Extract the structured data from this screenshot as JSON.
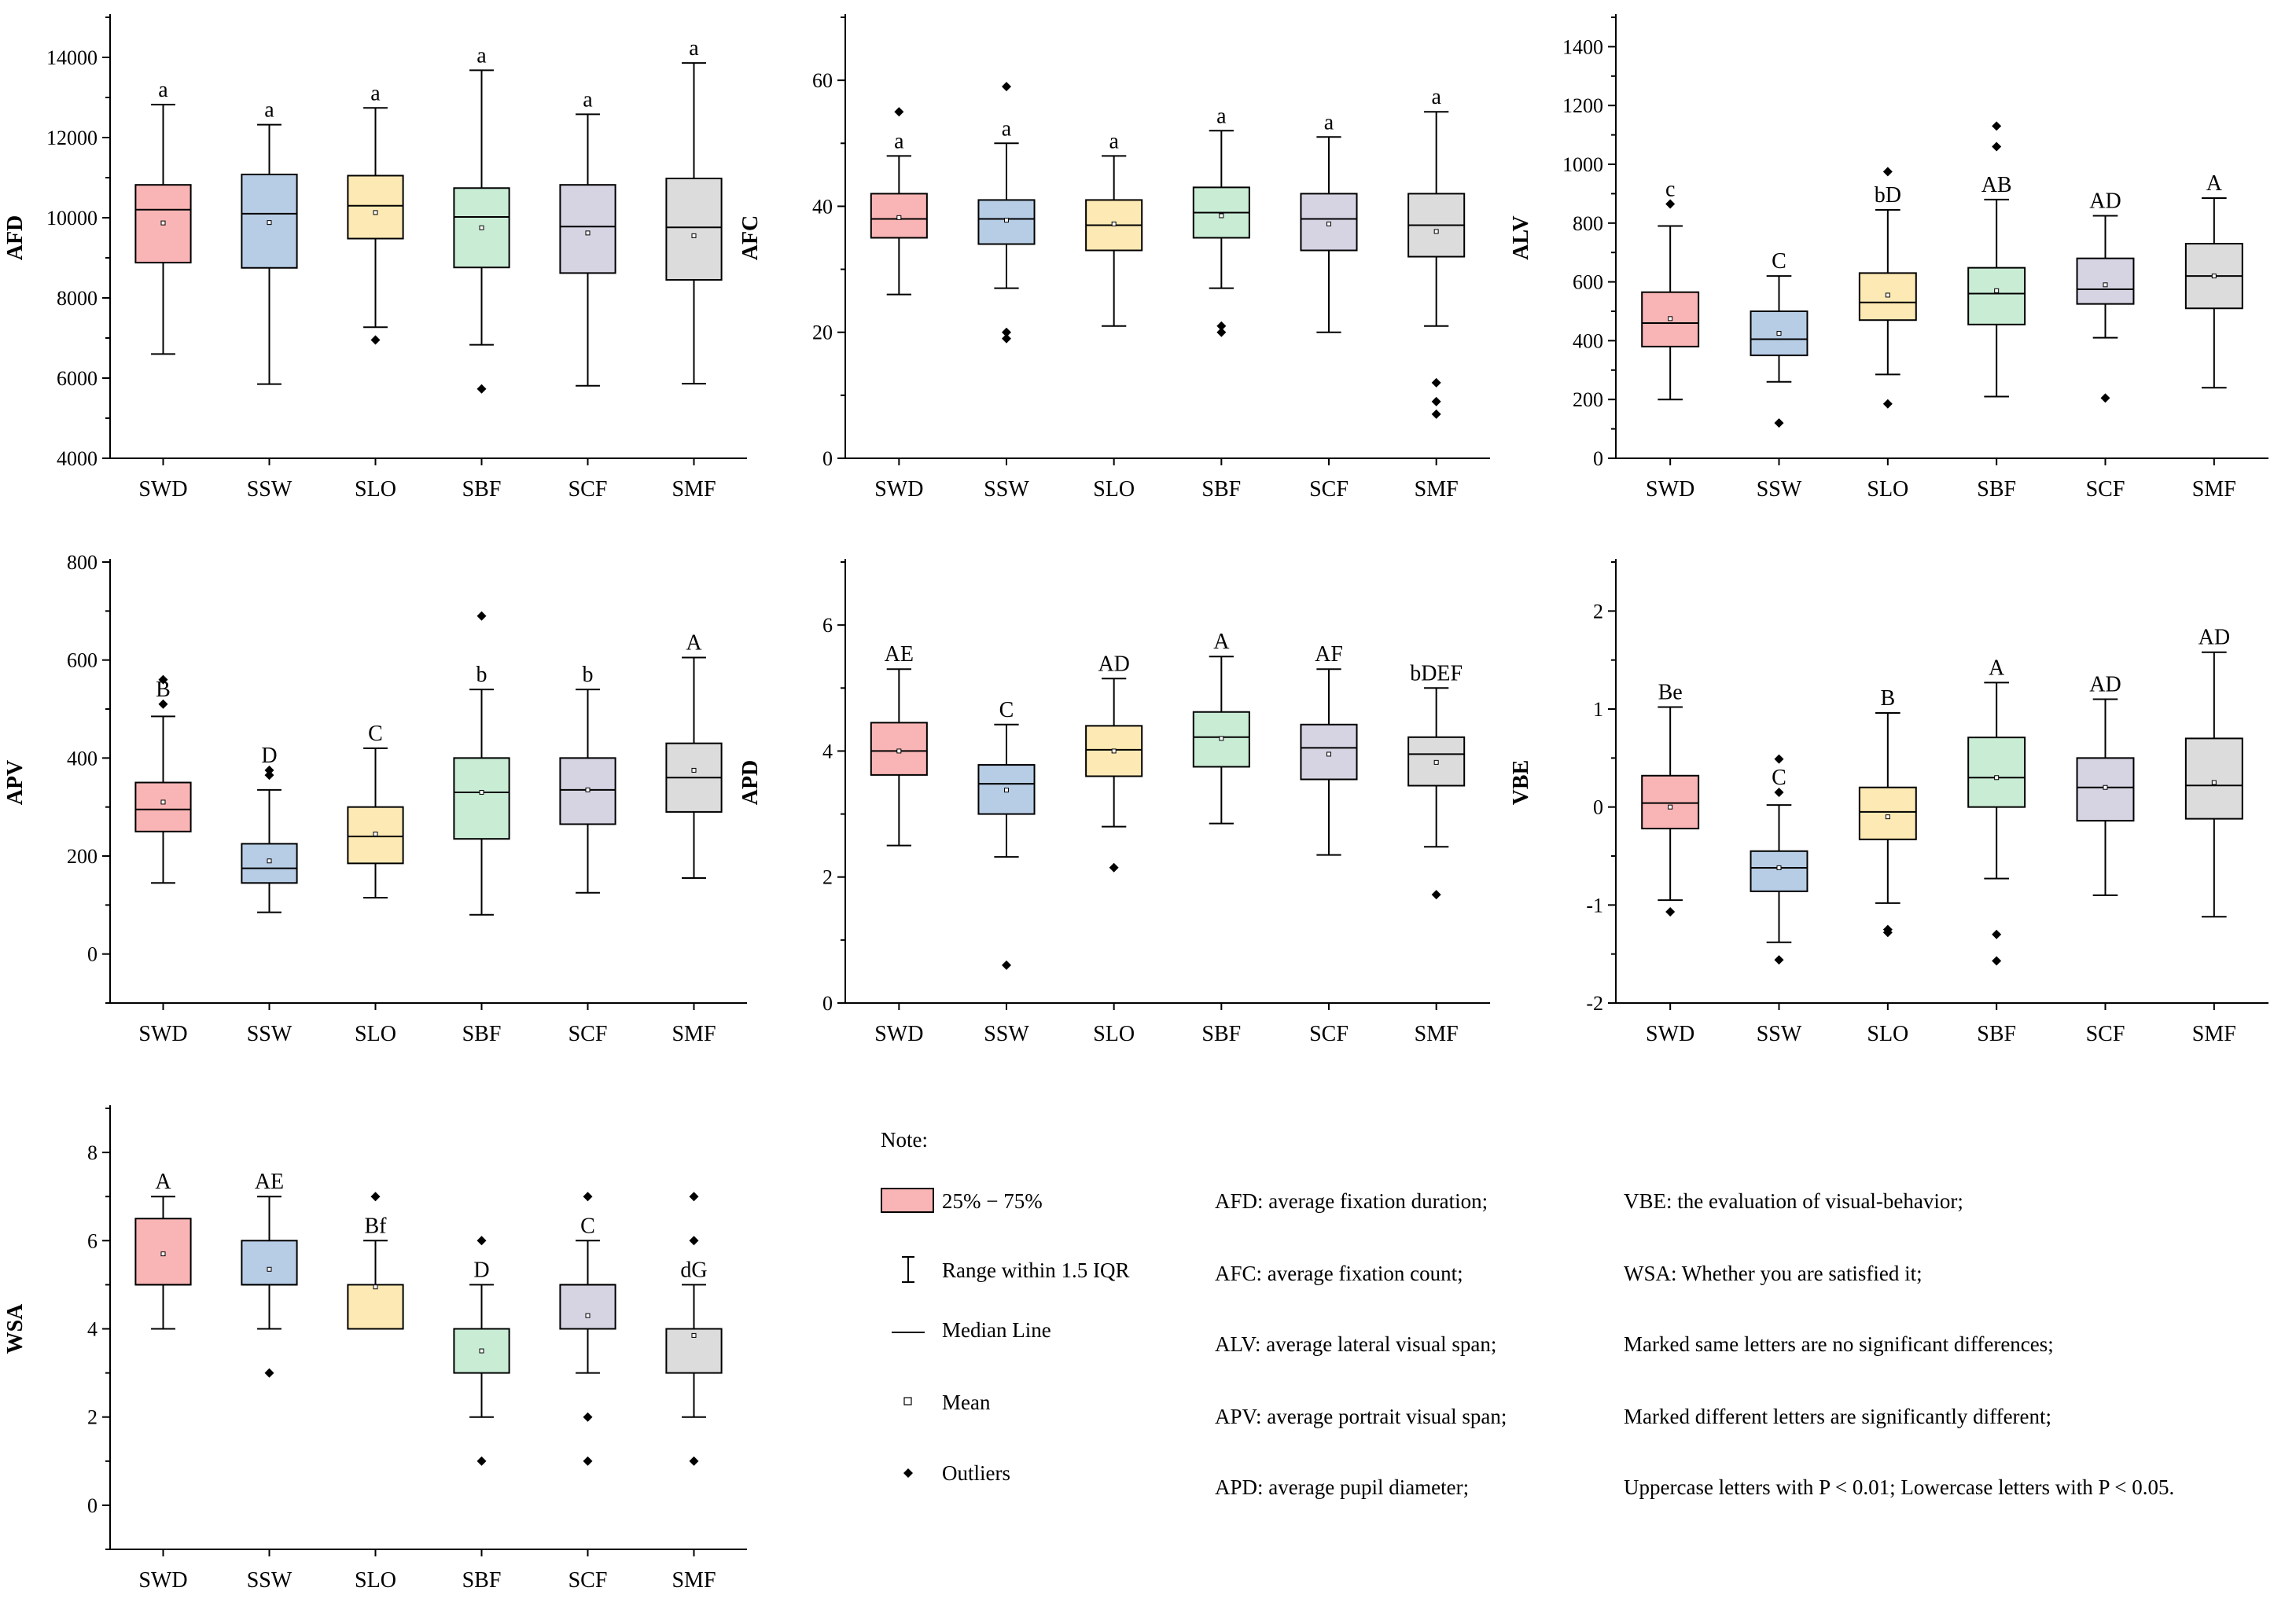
{
  "chart_data": [
    {
      "type": "boxplot",
      "ylabel": "AFD",
      "categories": [
        "SWD",
        "SSW",
        "SLO",
        "SBF",
        "SCF",
        "SMF"
      ],
      "ylim": [
        4000,
        15000
      ],
      "yticks": [
        4000,
        6000,
        8000,
        10000,
        12000,
        14000
      ],
      "series": [
        {
          "name": "SWD",
          "q1": 8880,
          "median": 10200,
          "q3": 10820,
          "mean": 9870,
          "whisker_low": 6600,
          "whisker_high": 12820,
          "outliers": [],
          "letter": "a"
        },
        {
          "name": "SSW",
          "q1": 8750,
          "median": 10100,
          "q3": 11080,
          "mean": 9880,
          "whisker_low": 5850,
          "whisker_high": 12320,
          "outliers": [],
          "letter": "a"
        },
        {
          "name": "SLO",
          "q1": 9480,
          "median": 10300,
          "q3": 11050,
          "mean": 10130,
          "whisker_low": 7270,
          "whisker_high": 12740,
          "outliers": [
            6950
          ],
          "letter": "a"
        },
        {
          "name": "SBF",
          "q1": 8760,
          "median": 10020,
          "q3": 10740,
          "mean": 9750,
          "whisker_low": 6830,
          "whisker_high": 13680,
          "outliers": [
            5730
          ],
          "letter": "a"
        },
        {
          "name": "SCF",
          "q1": 8620,
          "median": 9780,
          "q3": 10820,
          "mean": 9620,
          "whisker_low": 5810,
          "whisker_high": 12580,
          "outliers": [],
          "letter": "a"
        },
        {
          "name": "SMF",
          "q1": 8450,
          "median": 9760,
          "q3": 10980,
          "mean": 9550,
          "whisker_low": 5860,
          "whisker_high": 13860,
          "outliers": [],
          "letter": "a"
        }
      ]
    },
    {
      "type": "boxplot",
      "ylabel": "AFC",
      "categories": [
        "SWD",
        "SSW",
        "SLO",
        "SBF",
        "SCF",
        "SMF"
      ],
      "ylim": [
        0,
        70
      ],
      "yticks": [
        0,
        20,
        40,
        60
      ],
      "series": [
        {
          "name": "SWD",
          "q1": 35,
          "median": 38,
          "q3": 42,
          "mean": 38.2,
          "whisker_low": 26,
          "whisker_high": 48,
          "outliers": [
            55
          ],
          "letter": "a"
        },
        {
          "name": "SSW",
          "q1": 34,
          "median": 38,
          "q3": 41,
          "mean": 37.8,
          "whisker_low": 27,
          "whisker_high": 50,
          "outliers": [
            19,
            20,
            59
          ],
          "letter": "a"
        },
        {
          "name": "SLO",
          "q1": 33,
          "median": 37,
          "q3": 41,
          "mean": 37.2,
          "whisker_low": 21,
          "whisker_high": 48,
          "outliers": [],
          "letter": "a"
        },
        {
          "name": "SBF",
          "q1": 35,
          "median": 39,
          "q3": 43,
          "mean": 38.5,
          "whisker_low": 27,
          "whisker_high": 52,
          "outliers": [
            20,
            21
          ],
          "letter": "a"
        },
        {
          "name": "SCF",
          "q1": 33,
          "median": 38,
          "q3": 42,
          "mean": 37.2,
          "whisker_low": 20,
          "whisker_high": 51,
          "outliers": [],
          "letter": "a"
        },
        {
          "name": "SMF",
          "q1": 32,
          "median": 37,
          "q3": 42,
          "mean": 36,
          "whisker_low": 21,
          "whisker_high": 55,
          "outliers": [
            7,
            9,
            12
          ],
          "letter": "a"
        }
      ]
    },
    {
      "type": "boxplot",
      "ylabel": "ALV",
      "categories": [
        "SWD",
        "SSW",
        "SLO",
        "SBF",
        "SCF",
        "SMF"
      ],
      "ylim": [
        0,
        1500
      ],
      "yticks": [
        0,
        200,
        400,
        600,
        800,
        1000,
        1200,
        1400
      ],
      "series": [
        {
          "name": "SWD",
          "q1": 380,
          "median": 460,
          "q3": 565,
          "mean": 475,
          "whisker_low": 200,
          "whisker_high": 790,
          "outliers": [
            865
          ],
          "letter": "c"
        },
        {
          "name": "SSW",
          "q1": 350,
          "median": 405,
          "q3": 500,
          "mean": 425,
          "whisker_low": 260,
          "whisker_high": 620,
          "outliers": [
            120
          ],
          "letter": "C"
        },
        {
          "name": "SLO",
          "q1": 470,
          "median": 530,
          "q3": 630,
          "mean": 555,
          "whisker_low": 285,
          "whisker_high": 845,
          "outliers": [
            185,
            975
          ],
          "letter": "bD"
        },
        {
          "name": "SBF",
          "q1": 455,
          "median": 560,
          "q3": 648,
          "mean": 570,
          "whisker_low": 210,
          "whisker_high": 880,
          "outliers": [
            1060,
            1130
          ],
          "letter": "AB"
        },
        {
          "name": "SCF",
          "q1": 525,
          "median": 575,
          "q3": 680,
          "mean": 590,
          "whisker_low": 410,
          "whisker_high": 825,
          "outliers": [
            205
          ],
          "letter": "AD"
        },
        {
          "name": "SMF",
          "q1": 510,
          "median": 620,
          "q3": 730,
          "mean": 620,
          "whisker_low": 240,
          "whisker_high": 885,
          "outliers": [],
          "letter": "A"
        }
      ]
    },
    {
      "type": "boxplot",
      "ylabel": "APV",
      "categories": [
        "SWD",
        "SSW",
        "SLO",
        "SBF",
        "SCF",
        "SMF"
      ],
      "ylim": [
        -100,
        800
      ],
      "yticks": [
        0,
        200,
        400,
        600,
        800
      ],
      "series": [
        {
          "name": "SWD",
          "q1": 250,
          "median": 295,
          "q3": 350,
          "mean": 310,
          "whisker_low": 145,
          "whisker_high": 485,
          "outliers": [
            510,
            560
          ],
          "letter": "B"
        },
        {
          "name": "SSW",
          "q1": 145,
          "median": 175,
          "q3": 225,
          "mean": 190,
          "whisker_low": 85,
          "whisker_high": 335,
          "outliers": [
            365,
            375
          ],
          "letter": "D"
        },
        {
          "name": "SLO",
          "q1": 185,
          "median": 240,
          "q3": 300,
          "mean": 245,
          "whisker_low": 115,
          "whisker_high": 420,
          "outliers": [],
          "letter": "C"
        },
        {
          "name": "SBF",
          "q1": 235,
          "median": 330,
          "q3": 400,
          "mean": 330,
          "whisker_low": 80,
          "whisker_high": 540,
          "outliers": [
            690
          ],
          "letter": "b"
        },
        {
          "name": "SCF",
          "q1": 265,
          "median": 335,
          "q3": 400,
          "mean": 335,
          "whisker_low": 125,
          "whisker_high": 540,
          "outliers": [],
          "letter": "b"
        },
        {
          "name": "SMF",
          "q1": 290,
          "median": 360,
          "q3": 430,
          "mean": 375,
          "whisker_low": 155,
          "whisker_high": 605,
          "outliers": [],
          "letter": "A"
        }
      ]
    },
    {
      "type": "boxplot",
      "ylabel": "APD",
      "categories": [
        "SWD",
        "SSW",
        "SLO",
        "SBF",
        "SCF",
        "SMF"
      ],
      "ylim": [
        0,
        7
      ],
      "yticks": [
        0,
        2,
        4,
        6
      ],
      "series": [
        {
          "name": "SWD",
          "q1": 3.62,
          "median": 4.0,
          "q3": 4.45,
          "mean": 4.0,
          "whisker_low": 2.5,
          "whisker_high": 5.3,
          "outliers": [],
          "letter": "AE"
        },
        {
          "name": "SSW",
          "q1": 3.0,
          "median": 3.48,
          "q3": 3.78,
          "mean": 3.38,
          "whisker_low": 2.32,
          "whisker_high": 4.42,
          "outliers": [
            0.6
          ],
          "letter": "C"
        },
        {
          "name": "SLO",
          "q1": 3.6,
          "median": 4.02,
          "q3": 4.4,
          "mean": 4.0,
          "whisker_low": 2.8,
          "whisker_high": 5.15,
          "outliers": [
            2.15
          ],
          "letter": "AD"
        },
        {
          "name": "SBF",
          "q1": 3.75,
          "median": 4.22,
          "q3": 4.62,
          "mean": 4.2,
          "whisker_low": 2.85,
          "whisker_high": 5.5,
          "outliers": [],
          "letter": "A"
        },
        {
          "name": "SCF",
          "q1": 3.55,
          "median": 4.05,
          "q3": 4.42,
          "mean": 3.95,
          "whisker_low": 2.35,
          "whisker_high": 5.3,
          "outliers": [],
          "letter": "AF"
        },
        {
          "name": "SMF",
          "q1": 3.45,
          "median": 3.95,
          "q3": 4.22,
          "mean": 3.82,
          "whisker_low": 2.48,
          "whisker_high": 5.0,
          "outliers": [
            1.72
          ],
          "letter": "bDEF"
        }
      ]
    },
    {
      "type": "boxplot",
      "ylabel": "VBE",
      "categories": [
        "SWD",
        "SSW",
        "SLO",
        "SBF",
        "SCF",
        "SMF"
      ],
      "ylim": [
        -2,
        2.5
      ],
      "yticks": [
        -2,
        -1,
        0,
        1,
        2
      ],
      "series": [
        {
          "name": "SWD",
          "q1": -0.22,
          "median": 0.04,
          "q3": 0.32,
          "mean": 0.0,
          "whisker_low": -0.95,
          "whisker_high": 1.02,
          "outliers": [
            -1.07
          ],
          "letter": "Be"
        },
        {
          "name": "SSW",
          "q1": -0.86,
          "median": -0.62,
          "q3": -0.45,
          "mean": -0.62,
          "whisker_low": -1.38,
          "whisker_high": 0.02,
          "outliers": [
            -1.56,
            0.15,
            0.49
          ],
          "letter": "C"
        },
        {
          "name": "SLO",
          "q1": -0.33,
          "median": -0.05,
          "q3": 0.2,
          "mean": -0.1,
          "whisker_low": -0.98,
          "whisker_high": 0.96,
          "outliers": [
            -1.25,
            -1.28
          ],
          "letter": "B"
        },
        {
          "name": "SBF",
          "q1": 0.0,
          "median": 0.3,
          "q3": 0.71,
          "mean": 0.3,
          "whisker_low": -0.73,
          "whisker_high": 1.27,
          "outliers": [
            -1.3,
            -1.57
          ],
          "letter": "A"
        },
        {
          "name": "SCF",
          "q1": -0.14,
          "median": 0.2,
          "q3": 0.5,
          "mean": 0.2,
          "whisker_low": -0.9,
          "whisker_high": 1.1,
          "outliers": [],
          "letter": "AD"
        },
        {
          "name": "SMF",
          "q1": -0.12,
          "median": 0.22,
          "q3": 0.7,
          "mean": 0.25,
          "whisker_low": -1.12,
          "whisker_high": 1.58,
          "outliers": [],
          "letter": "AD"
        }
      ]
    },
    {
      "type": "boxplot",
      "ylabel": "WSA",
      "categories": [
        "SWD",
        "SSW",
        "SLO",
        "SBF",
        "SCF",
        "SMF"
      ],
      "ylim": [
        -1,
        9
      ],
      "yticks": [
        0,
        2,
        4,
        6,
        8
      ],
      "series": [
        {
          "name": "SWD",
          "q1": 5,
          "median": 5,
          "q3": 6.5,
          "mean": 5.7,
          "whisker_low": 4,
          "whisker_high": 7,
          "outliers": [],
          "letter": "A"
        },
        {
          "name": "SSW",
          "q1": 5,
          "median": 5,
          "q3": 6,
          "mean": 5.35,
          "whisker_low": 4,
          "whisker_high": 7,
          "outliers": [
            3
          ],
          "letter": "AE"
        },
        {
          "name": "SLO",
          "q1": 4,
          "median": 4,
          "q3": 5,
          "mean": 4.95,
          "whisker_low": 4,
          "whisker_high": 6,
          "outliers": [
            7
          ],
          "letter": "Bf"
        },
        {
          "name": "SBF",
          "q1": 3,
          "median": 4,
          "q3": 4,
          "mean": 3.5,
          "whisker_low": 2,
          "whisker_high": 5,
          "outliers": [
            1,
            6
          ],
          "letter": "D"
        },
        {
          "name": "SCF",
          "q1": 4,
          "median": 5,
          "q3": 5,
          "mean": 4.3,
          "whisker_low": 3,
          "whisker_high": 6,
          "outliers": [
            1,
            2,
            7
          ],
          "letter": "C"
        },
        {
          "name": "SMF",
          "q1": 3,
          "median": 4,
          "q3": 4,
          "mean": 3.85,
          "whisker_low": 2,
          "whisker_high": 5,
          "outliers": [
            1,
            6,
            7
          ],
          "letter": "dG"
        }
      ]
    }
  ],
  "colors": {
    "SWD": "#f9b5b5",
    "SSW": "#b7cde6",
    "SLO": "#fde9b3",
    "SBF": "#c9ecd5",
    "SCF": "#d6d3e3",
    "SMF": "#dcdcdc",
    "stroke": "#000000"
  },
  "legend": {
    "title": "Note:",
    "box_label": "25% − 75%",
    "range_label": "Range within 1.5 IQR",
    "median_label": "Median Line",
    "mean_label": "Mean",
    "outliers_label": "Outliers",
    "abbreviations": [
      "AFD: average fixation duration;",
      "AFC: average fixation count;",
      "ALV: average lateral visual span;",
      "APV: average portrait visual span;",
      "APD: average pupil diameter;"
    ],
    "notes": [
      "VBE: the evaluation of visual-behavior;",
      "WSA: Whether you are satisfied it;",
      "Marked same letters are no significant differences;",
      "Marked different letters are significantly different;",
      "Uppercase letters with P < 0.01; Lowercase letters with P < 0.05."
    ]
  }
}
